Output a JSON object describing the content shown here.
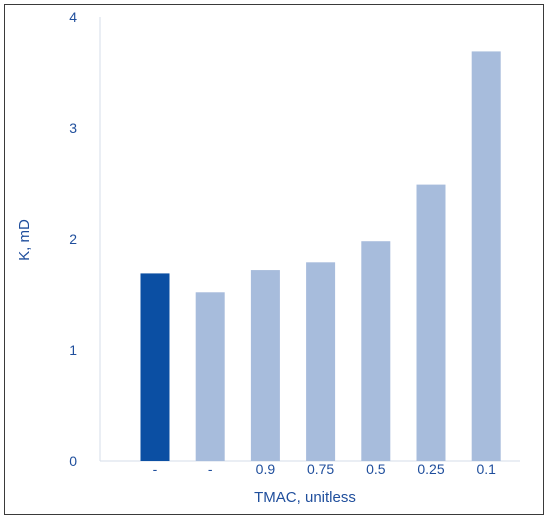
{
  "chart_data": {
    "type": "bar",
    "title": "",
    "xlabel": "TMAC, unitless",
    "ylabel": "K, mD",
    "ylim": [
      0,
      4
    ],
    "yticks": [
      0,
      1,
      2,
      3,
      4
    ],
    "grid": false,
    "categories": [
      "-",
      "-",
      "0.9",
      "0.75",
      "0.5",
      "0.25",
      "0.1"
    ],
    "values": [
      1.69,
      1.52,
      1.72,
      1.79,
      1.98,
      2.49,
      3.69
    ],
    "colors": [
      "#0b4fa3",
      "#a7bcdc",
      "#a7bcdc",
      "#a7bcdc",
      "#a7bcdc",
      "#a7bcdc",
      "#a7bcdc"
    ],
    "axis_color": "#d6deea",
    "text_color": "#1f4e9c"
  }
}
